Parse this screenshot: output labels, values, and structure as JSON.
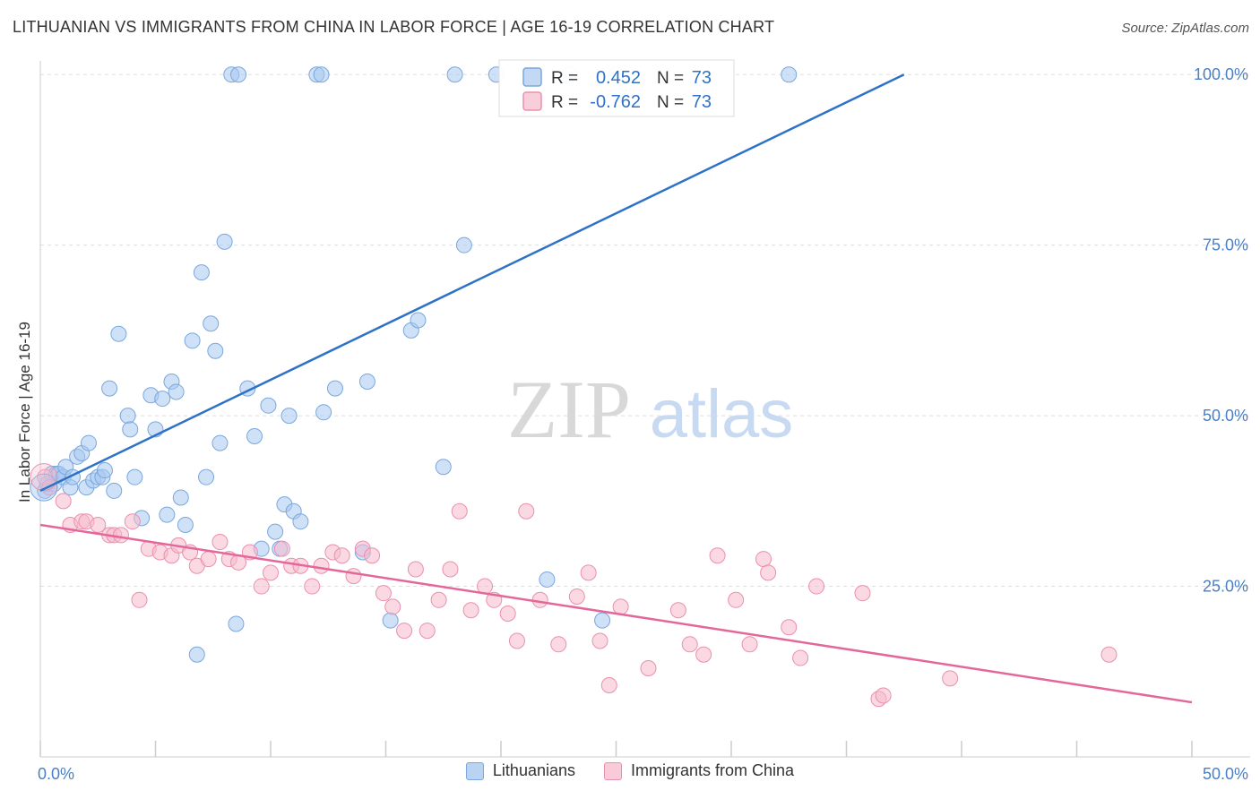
{
  "header": {
    "title": "LITHUANIAN VS IMMIGRANTS FROM CHINA IN LABOR FORCE | AGE 16-19 CORRELATION CHART",
    "source": "Source: ZipAtlas.com"
  },
  "watermark": {
    "part1": "ZIP",
    "part2": "atlas"
  },
  "chart_data": {
    "type": "scatter",
    "xlabel": "",
    "ylabel": "In Labor Force | Age 16-19",
    "xlim": [
      0,
      50
    ],
    "ylim": [
      0,
      102
    ],
    "x_tick_labels": [
      {
        "value": 0,
        "label": "0.0%"
      },
      {
        "value": 50,
        "label": "50.0%"
      }
    ],
    "y_tick_labels": [
      {
        "value": 25,
        "label": "25.0%"
      },
      {
        "value": 50,
        "label": "50.0%"
      },
      {
        "value": 75,
        "label": "75.0%"
      },
      {
        "value": 100,
        "label": "100.0%"
      }
    ],
    "grid": true,
    "legend_position": "bottom",
    "stats_box": {
      "rows": [
        {
          "r_label": "R =",
          "r_value": "0.452",
          "n_label": "N =",
          "n_value": "73"
        },
        {
          "r_label": "R =",
          "r_value": "-0.762",
          "n_label": "N =",
          "n_value": "73"
        }
      ]
    },
    "series": [
      {
        "name": "Lithuanians",
        "color": "#a8c8f0",
        "stroke": "#7aa7dd",
        "line_color": "#2e72c8",
        "trend": {
          "x": [
            0,
            37.5
          ],
          "y": [
            39,
            100
          ]
        },
        "points": [
          [
            0.2,
            39
          ],
          [
            0.3,
            40
          ],
          [
            0.5,
            41.5
          ],
          [
            0.6,
            40
          ],
          [
            0.7,
            41.5
          ],
          [
            0.8,
            41.5
          ],
          [
            1.0,
            41
          ],
          [
            1.1,
            42.5
          ],
          [
            1.3,
            39.5
          ],
          [
            1.4,
            41
          ],
          [
            1.6,
            44
          ],
          [
            1.8,
            44.5
          ],
          [
            2.0,
            39.5
          ],
          [
            2.1,
            46
          ],
          [
            2.3,
            40.5
          ],
          [
            2.5,
            41
          ],
          [
            2.7,
            41
          ],
          [
            2.8,
            42
          ],
          [
            3.0,
            54
          ],
          [
            3.2,
            39
          ],
          [
            3.4,
            62
          ],
          [
            3.8,
            50
          ],
          [
            3.9,
            48
          ],
          [
            4.1,
            41
          ],
          [
            4.4,
            35
          ],
          [
            4.8,
            53
          ],
          [
            5.0,
            48
          ],
          [
            5.3,
            52.5
          ],
          [
            5.5,
            35.5
          ],
          [
            5.7,
            55
          ],
          [
            5.9,
            53.5
          ],
          [
            6.1,
            38
          ],
          [
            6.3,
            34
          ],
          [
            6.6,
            61
          ],
          [
            6.8,
            15
          ],
          [
            7.0,
            71
          ],
          [
            7.2,
            41
          ],
          [
            7.4,
            63.5
          ],
          [
            7.6,
            59.5
          ],
          [
            7.8,
            46
          ],
          [
            8.0,
            75.5
          ],
          [
            8.3,
            100
          ],
          [
            8.5,
            19.5
          ],
          [
            8.6,
            100
          ],
          [
            9.0,
            54
          ],
          [
            9.3,
            47
          ],
          [
            9.6,
            30.5
          ],
          [
            9.9,
            51.5
          ],
          [
            10.2,
            33
          ],
          [
            10.4,
            30.5
          ],
          [
            10.6,
            37
          ],
          [
            10.8,
            50
          ],
          [
            11.0,
            36
          ],
          [
            11.3,
            34.5
          ],
          [
            12.0,
            100
          ],
          [
            12.2,
            100
          ],
          [
            12.3,
            50.5
          ],
          [
            12.8,
            54
          ],
          [
            14.0,
            30
          ],
          [
            14.2,
            55
          ],
          [
            15.2,
            20
          ],
          [
            16.1,
            62.5
          ],
          [
            16.4,
            64
          ],
          [
            17.5,
            42.5
          ],
          [
            18.0,
            100
          ],
          [
            18.4,
            75
          ],
          [
            19.8,
            100
          ],
          [
            21.3,
            100
          ],
          [
            22.0,
            26
          ],
          [
            23.0,
            100
          ],
          [
            24.4,
            20
          ],
          [
            25.0,
            100
          ],
          [
            32.5,
            100
          ]
        ]
      },
      {
        "name": "Immigrants from China",
        "color": "#f6b9cc",
        "stroke": "#eb8fae",
        "line_color": "#e4679a",
        "trend": {
          "x": [
            0,
            50
          ],
          "y": [
            34,
            8
          ]
        },
        "points": [
          [
            0.2,
            41
          ],
          [
            0.4,
            39.5
          ],
          [
            1.0,
            37.5
          ],
          [
            1.3,
            34
          ],
          [
            1.8,
            34.5
          ],
          [
            2.0,
            34.5
          ],
          [
            2.5,
            34
          ],
          [
            3.0,
            32.5
          ],
          [
            3.2,
            32.5
          ],
          [
            3.5,
            32.5
          ],
          [
            4.0,
            34.5
          ],
          [
            4.3,
            23
          ],
          [
            4.7,
            30.5
          ],
          [
            5.2,
            30
          ],
          [
            5.7,
            29.5
          ],
          [
            6.0,
            31
          ],
          [
            6.5,
            30
          ],
          [
            6.8,
            28
          ],
          [
            7.3,
            29
          ],
          [
            7.8,
            31.5
          ],
          [
            8.2,
            29
          ],
          [
            8.6,
            28.5
          ],
          [
            9.1,
            30
          ],
          [
            9.6,
            25
          ],
          [
            10.0,
            27
          ],
          [
            10.5,
            30.5
          ],
          [
            10.9,
            28
          ],
          [
            11.3,
            28
          ],
          [
            11.8,
            25
          ],
          [
            12.2,
            28
          ],
          [
            12.7,
            30
          ],
          [
            13.1,
            29.5
          ],
          [
            13.6,
            26.5
          ],
          [
            14.0,
            30.5
          ],
          [
            14.4,
            29.5
          ],
          [
            14.9,
            24
          ],
          [
            15.3,
            22
          ],
          [
            15.8,
            18.5
          ],
          [
            16.3,
            27.5
          ],
          [
            16.8,
            18.5
          ],
          [
            17.3,
            23
          ],
          [
            17.8,
            27.5
          ],
          [
            18.2,
            36
          ],
          [
            18.7,
            21.5
          ],
          [
            19.3,
            25
          ],
          [
            19.7,
            23
          ],
          [
            20.3,
            21
          ],
          [
            20.7,
            17
          ],
          [
            21.1,
            36
          ],
          [
            21.7,
            23
          ],
          [
            22.5,
            16.5
          ],
          [
            23.3,
            23.5
          ],
          [
            23.8,
            27
          ],
          [
            24.3,
            17
          ],
          [
            24.7,
            10.5
          ],
          [
            25.2,
            22
          ],
          [
            26.4,
            13
          ],
          [
            27.7,
            21.5
          ],
          [
            28.2,
            16.5
          ],
          [
            28.8,
            15
          ],
          [
            29.4,
            29.5
          ],
          [
            30.2,
            23
          ],
          [
            30.8,
            16.5
          ],
          [
            31.4,
            29
          ],
          [
            31.6,
            27
          ],
          [
            32.5,
            19
          ],
          [
            33.0,
            14.5
          ],
          [
            33.7,
            25
          ],
          [
            35.7,
            24
          ],
          [
            36.4,
            8.5
          ],
          [
            36.6,
            9
          ],
          [
            39.5,
            11.5
          ],
          [
            46.4,
            15
          ]
        ]
      }
    ]
  }
}
